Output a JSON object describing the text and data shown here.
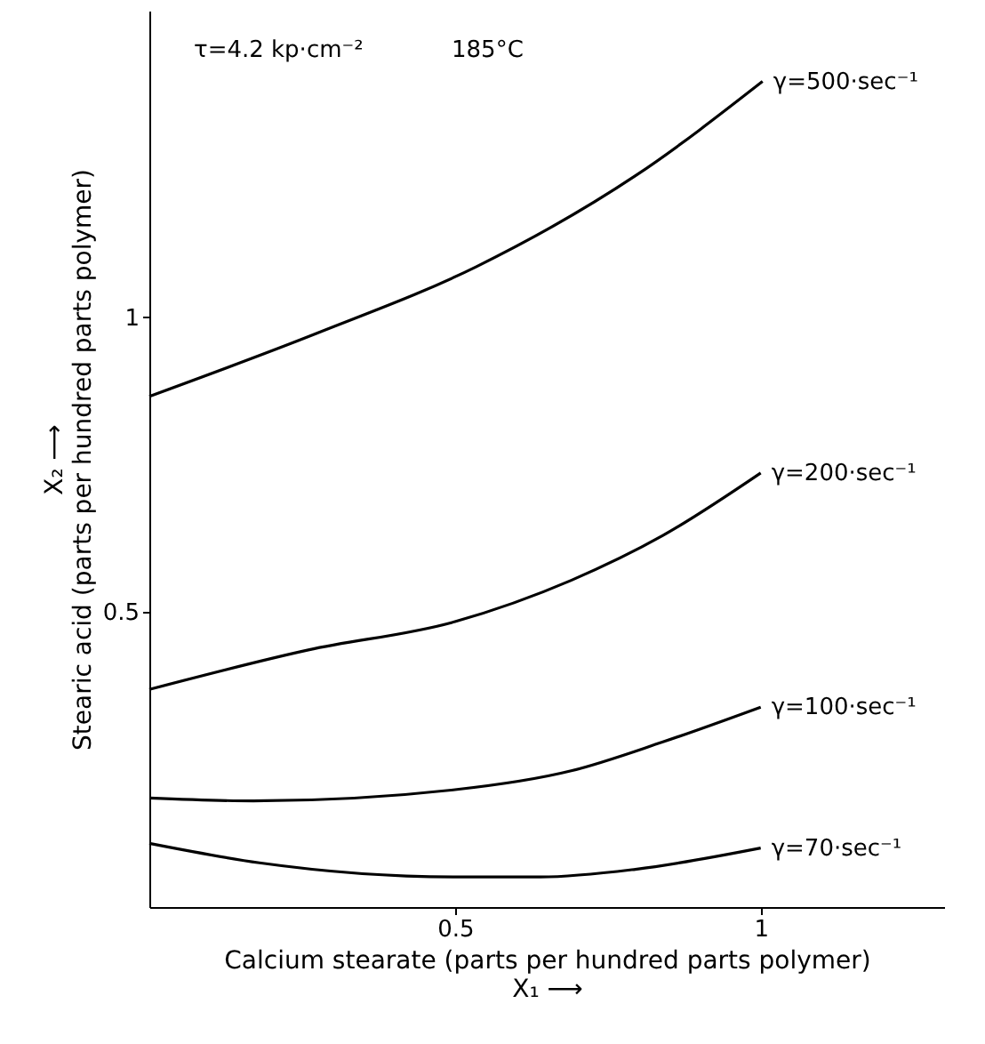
{
  "chart_data": {
    "type": "line",
    "xlabel": "Calcium stearate (parts per hundred parts polymer)\nX₁ ⟶",
    "ylabel": "X₂ ⟶\nStearic acid (parts per hundred parts polymer)",
    "xlim": [
      0,
      1.3
    ],
    "ylim": [
      0,
      1.52
    ],
    "xticks": [
      0.5,
      1
    ],
    "yticks": [
      0.5,
      1
    ],
    "grid": false,
    "legend": false,
    "marker": "none",
    "line_style": "solid",
    "annotations": [
      "τ=4.2 kp·cm⁻²",
      "185°C"
    ],
    "series": [
      {
        "name": "γ=500·sec⁻¹",
        "color": "#000000",
        "x": [
          0,
          0.274,
          0.535,
          0.795,
          1.003
        ],
        "values": [
          0.866,
          0.973,
          1.086,
          1.24,
          1.4
        ]
      },
      {
        "name": "γ=200·sec⁻¹",
        "color": "#000000",
        "x": [
          0,
          0.26,
          0.5,
          0.69,
          0.84,
          1.0
        ],
        "values": [
          0.369,
          0.436,
          0.484,
          0.554,
          0.63,
          0.736
        ]
      },
      {
        "name": "γ=100·sec⁻¹",
        "color": "#000000",
        "x": [
          0,
          0.17,
          0.5,
          0.69,
          0.84,
          1.0
        ],
        "values": [
          0.185,
          0.18,
          0.199,
          0.231,
          0.28,
          0.339
        ]
      },
      {
        "name": "γ=70·sec⁻¹",
        "color": "#000000",
        "x": [
          0,
          0.18,
          0.5,
          0.64,
          0.795,
          1.0
        ],
        "values": [
          0.108,
          0.075,
          0.051,
          0.051,
          0.064,
          0.1
        ]
      }
    ]
  }
}
